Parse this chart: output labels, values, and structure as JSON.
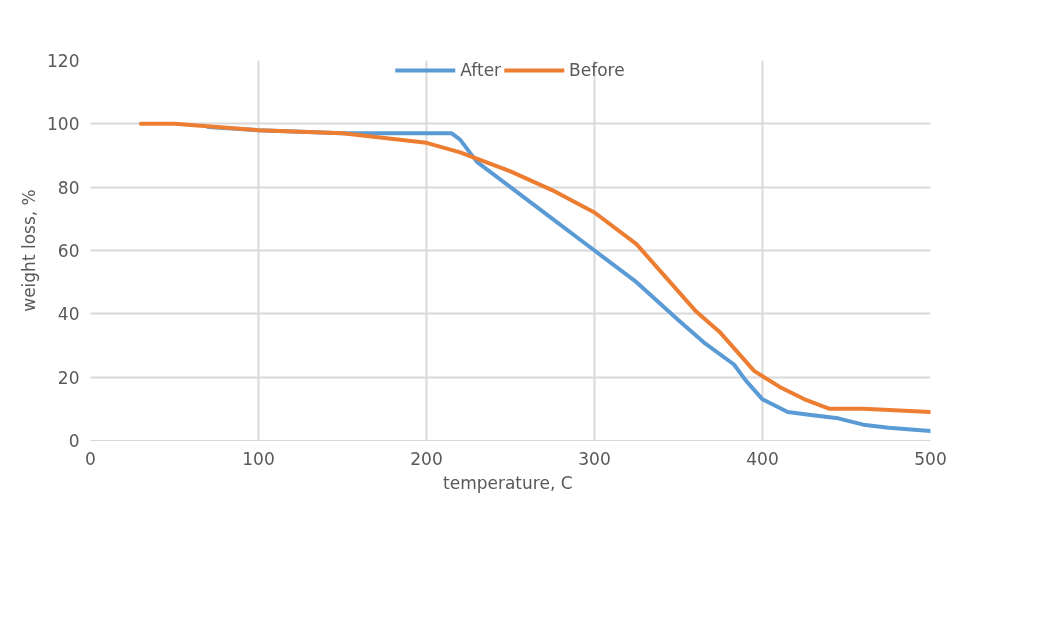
{
  "chart_data": {
    "type": "line",
    "xlabel": "temperature,  C",
    "ylabel": "weight loss, %",
    "xlim": [
      0,
      500
    ],
    "xticks": [
      0,
      100,
      200,
      300,
      400,
      500
    ],
    "ylim": [
      0,
      120
    ],
    "yticks": [
      0,
      20,
      40,
      60,
      80,
      100,
      120
    ],
    "grid": true,
    "legend": "top",
    "marker": "none",
    "line_style": "solid",
    "series": [
      {
        "name": "After",
        "color": "#5b9bd5",
        "x": [
          70,
          100,
          150,
          200,
          215,
          220,
          230,
          250,
          275,
          300,
          325,
          350,
          365,
          383,
          390,
          400,
          415,
          430,
          445,
          460,
          475,
          500
        ],
        "values": [
          99,
          98,
          97,
          97,
          97,
          95,
          88,
          80,
          70,
          60,
          50,
          38,
          31,
          24,
          19,
          13,
          9,
          8,
          7,
          5,
          4,
          3
        ]
      },
      {
        "name": "Before",
        "color": "#ed7d31",
        "x": [
          30,
          50,
          100,
          150,
          200,
          220,
          250,
          275,
          300,
          325,
          340,
          360,
          375,
          385,
          395,
          410,
          425,
          440,
          460,
          500
        ],
        "values": [
          100,
          100,
          98,
          97,
          94,
          91,
          85,
          79,
          72,
          62,
          53,
          41,
          34,
          28,
          22,
          17,
          13,
          10,
          10,
          9
        ]
      }
    ]
  }
}
